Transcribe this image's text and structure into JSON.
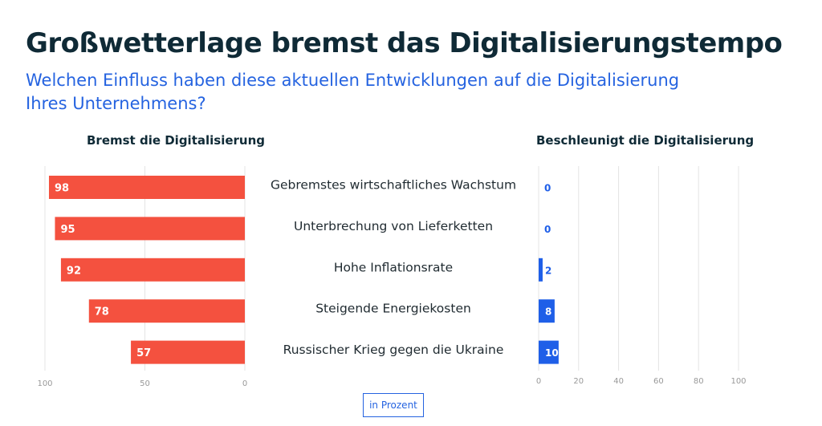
{
  "title": "Großwetterlage bremst das Digitalisierungstempo",
  "subtitle": "Welchen Einfluss haben diese aktuellen Entwicklungen auf die Digitalisierung Ihres Unternehmens?",
  "unit_button": "in Prozent",
  "colors": {
    "brake": "#f4513f",
    "accelerate": "#1f5fe8",
    "grid": "#e4e4e4",
    "tick": "#999999"
  },
  "chart_data": [
    {
      "type": "bar",
      "orientation": "horizontal-reversed",
      "title": "Bremst die Digitalisierung",
      "categories": [
        "Gebremstes wirtschaftliches Wachstum",
        "Unterbrechung von Lieferketten",
        "Hohe Inflationsrate",
        "Steigende Energiekosten",
        "Russischer Krieg gegen die Ukraine"
      ],
      "values": [
        98,
        95,
        92,
        78,
        57
      ],
      "xlim": [
        0,
        100
      ],
      "ticks": [
        "100",
        "50",
        "0"
      ],
      "grid": true
    },
    {
      "type": "bar",
      "orientation": "horizontal",
      "title": "Beschleunigt die Digitalisierung",
      "categories": [
        "Gebremstes wirtschaftliches Wachstum",
        "Unterbrechung von Lieferketten",
        "Hohe Inflationsrate",
        "Steigende Energiekosten",
        "Russischer Krieg gegen die Ukraine"
      ],
      "values": [
        0,
        0,
        2,
        8,
        10
      ],
      "xlim": [
        0,
        100
      ],
      "ticks": [
        "0",
        "20",
        "40",
        "60",
        "80",
        "100"
      ],
      "grid": true
    }
  ]
}
